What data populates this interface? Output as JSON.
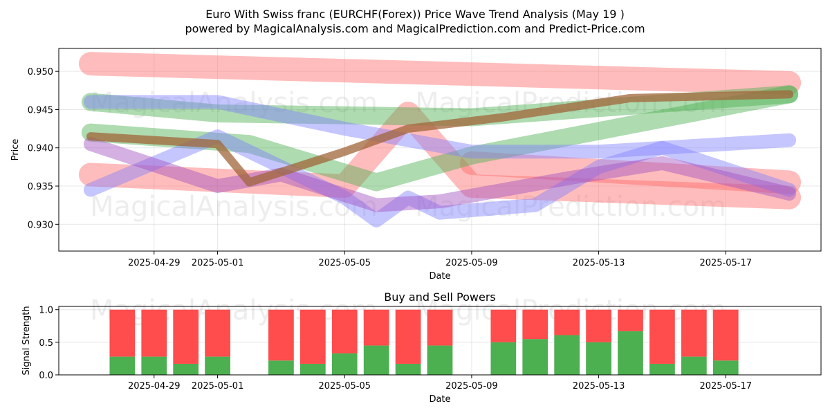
{
  "title_line1": "Euro With Swiss franc (EURCHF(Forex)) Price Wave Trend Analysis (May 19 )",
  "title_line2": "powered by MagicalAnalysis.com and MagicalPrediction.com and Predict-Price.com",
  "watermarks": [
    "MagicalAnalysis.com",
    "MagicalPrediction.com"
  ],
  "colors": {
    "red_band": "#ff6b6b",
    "green_band": "#4caf50",
    "blue_band": "#8080ff",
    "purple_band": "#a050c0",
    "brown_band": "#a0653a",
    "buy_bar": "#4caf50",
    "sell_bar": "#ff4c4c"
  },
  "chart_data": [
    {
      "type": "area",
      "title": "",
      "xlabel": "Date",
      "ylabel": "Price",
      "xlim": [
        "2025-04-26",
        "2025-05-20"
      ],
      "ylim": [
        0.9265,
        0.953
      ],
      "x_ticks": [
        "2025-04-29",
        "2025-05-01",
        "2025-05-05",
        "2025-05-09",
        "2025-05-13",
        "2025-05-17"
      ],
      "y_ticks": [
        "0.930",
        "0.935",
        "0.940",
        "0.945",
        "0.950"
      ],
      "grid": true,
      "series": [
        {
          "color": "red",
          "x": [
            "2025-04-27",
            "2025-05-19"
          ],
          "y": [
            0.951,
            0.9485
          ]
        },
        {
          "color": "red",
          "x": [
            "2025-04-27",
            "2025-05-05",
            "2025-05-07",
            "2025-05-09",
            "2025-05-19"
          ],
          "y": [
            0.9365,
            0.935,
            0.9445,
            0.935,
            0.9335
          ]
        },
        {
          "color": "red",
          "x": [
            "2025-05-09",
            "2025-05-19"
          ],
          "y": [
            0.938,
            0.9355
          ]
        },
        {
          "color": "green",
          "x": [
            "2025-04-27",
            "2025-05-01",
            "2025-05-09",
            "2025-05-19"
          ],
          "y": [
            0.946,
            0.9445,
            0.944,
            0.947
          ]
        },
        {
          "color": "green",
          "x": [
            "2025-04-27",
            "2025-05-02",
            "2025-05-06",
            "2025-05-09",
            "2025-05-19"
          ],
          "y": [
            0.942,
            0.9405,
            0.9355,
            0.939,
            0.947
          ]
        },
        {
          "color": "blue",
          "x": [
            "2025-04-27",
            "2025-05-01",
            "2025-05-05",
            "2025-05-09",
            "2025-05-13",
            "2025-05-19"
          ],
          "y": [
            0.946,
            0.946,
            0.9425,
            0.9395,
            0.9395,
            0.941
          ]
        },
        {
          "color": "blue",
          "x": [
            "2025-04-27",
            "2025-05-01",
            "2025-05-05",
            "2025-05-06",
            "2025-05-07",
            "2025-05-08",
            "2025-05-11",
            "2025-05-13",
            "2025-05-15",
            "2025-05-19"
          ],
          "y": [
            0.9345,
            0.9415,
            0.9335,
            0.9305,
            0.9335,
            0.9315,
            0.9325,
            0.9375,
            0.94,
            0.9345
          ]
        },
        {
          "color": "purple",
          "x": [
            "2025-04-27",
            "2025-05-01",
            "2025-05-03",
            "2025-05-06",
            "2025-05-08",
            "2025-05-12",
            "2025-05-15",
            "2025-05-19"
          ],
          "y": [
            0.9405,
            0.935,
            0.9365,
            0.9325,
            0.933,
            0.936,
            0.938,
            0.934
          ]
        },
        {
          "color": "brown",
          "x": [
            "2025-04-27",
            "2025-05-01",
            "2025-05-02",
            "2025-05-05",
            "2025-05-07",
            "2025-05-10",
            "2025-05-14",
            "2025-05-19"
          ],
          "y": [
            0.9415,
            0.9405,
            0.9355,
            0.9395,
            0.9425,
            0.944,
            0.9465,
            0.947
          ]
        }
      ]
    },
    {
      "type": "bar",
      "title": "Buy and Sell Powers",
      "xlabel": "Date",
      "ylabel": "Signal Strength",
      "ylim": [
        0,
        1.05
      ],
      "x_ticks": [
        "2025-04-29",
        "2025-05-01",
        "2025-05-05",
        "2025-05-09",
        "2025-05-13",
        "2025-05-17"
      ],
      "y_ticks": [
        "0.0",
        "0.5",
        "1.0"
      ],
      "grid": true,
      "series": [
        {
          "name": "buy",
          "x": [
            "2025-04-28",
            "2025-04-29",
            "2025-04-30",
            "2025-05-01",
            "2025-05-03",
            "2025-05-04",
            "2025-05-05",
            "2025-05-06",
            "2025-05-07",
            "2025-05-08",
            "2025-05-10",
            "2025-05-11",
            "2025-05-12",
            "2025-05-13",
            "2025-05-14",
            "2025-05-15",
            "2025-05-16",
            "2025-05-17"
          ],
          "values": [
            0.28,
            0.28,
            0.17,
            0.28,
            0.22,
            0.17,
            0.33,
            0.45,
            0.17,
            0.45,
            0.5,
            0.55,
            0.61,
            0.5,
            0.67,
            0.17,
            0.28,
            0.22
          ]
        },
        {
          "name": "sell",
          "x": [
            "2025-04-28",
            "2025-04-29",
            "2025-04-30",
            "2025-05-01",
            "2025-05-03",
            "2025-05-04",
            "2025-05-05",
            "2025-05-06",
            "2025-05-07",
            "2025-05-08",
            "2025-05-10",
            "2025-05-11",
            "2025-05-12",
            "2025-05-13",
            "2025-05-14",
            "2025-05-15",
            "2025-05-16",
            "2025-05-17"
          ],
          "values": [
            0.72,
            0.72,
            0.83,
            0.72,
            0.78,
            0.83,
            0.67,
            0.55,
            0.83,
            0.55,
            0.5,
            0.45,
            0.39,
            0.5,
            0.33,
            0.83,
            0.72,
            0.78
          ]
        }
      ]
    }
  ]
}
